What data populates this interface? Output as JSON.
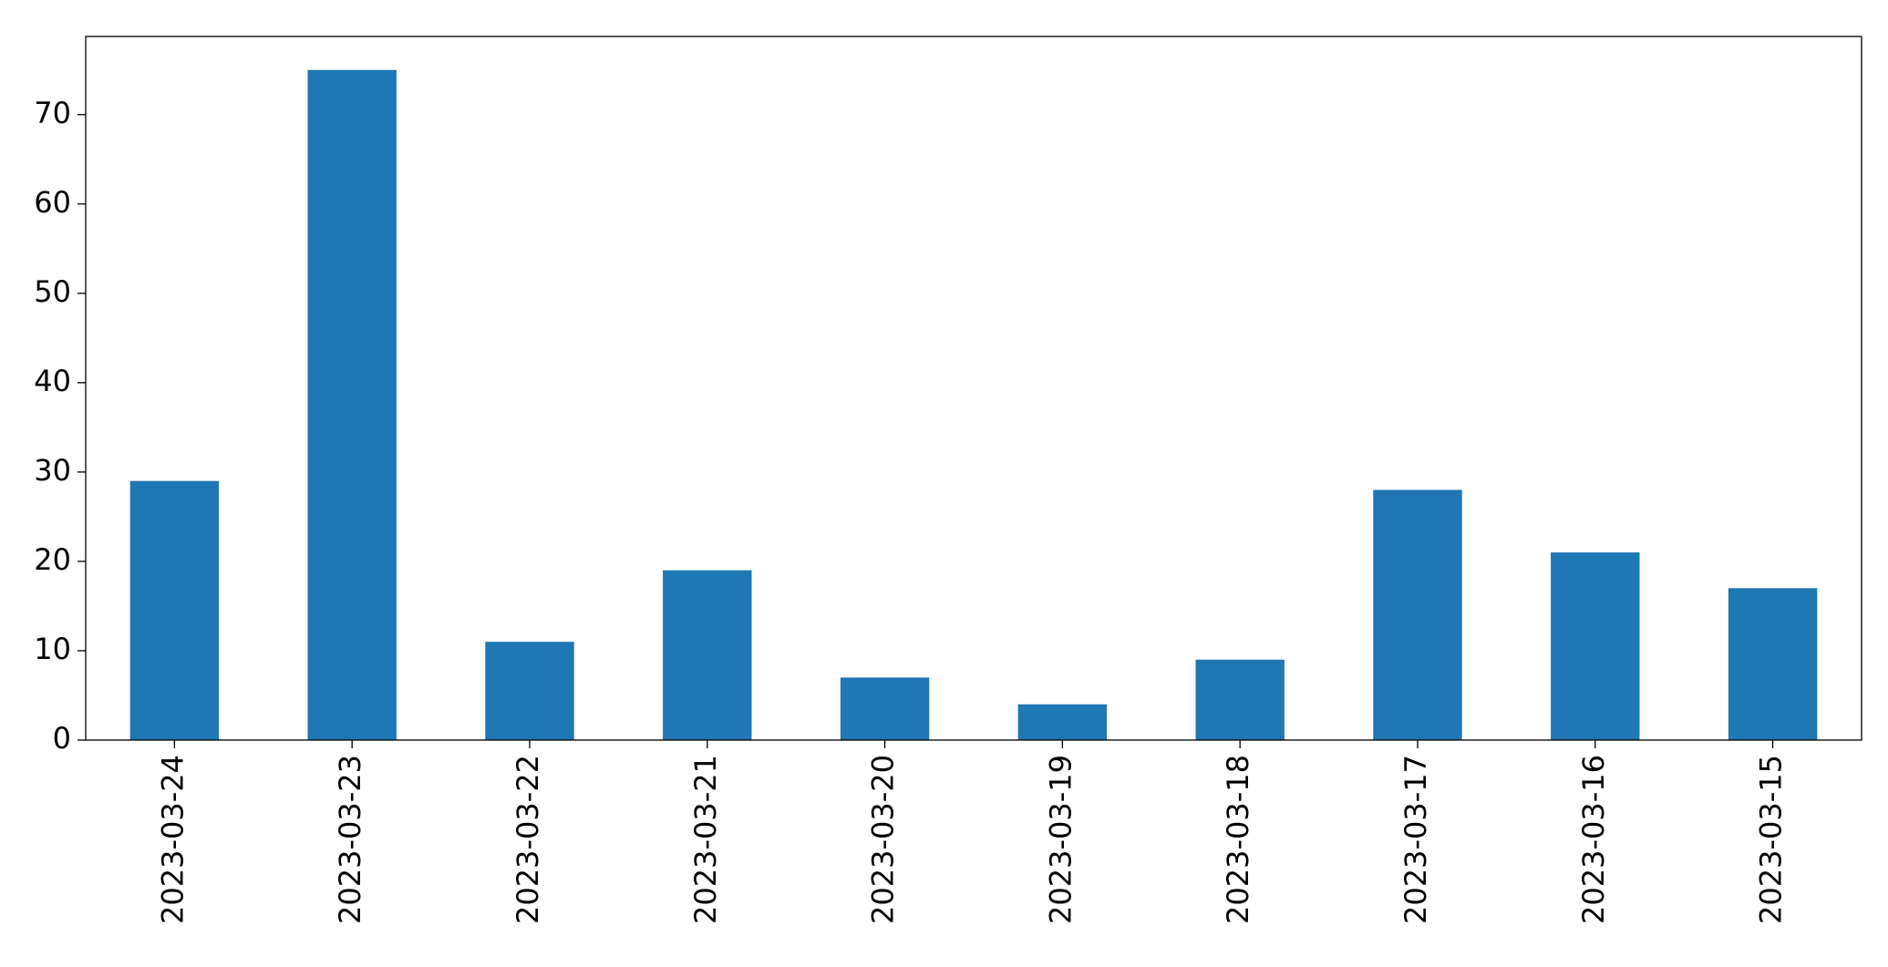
{
  "chart_data": {
    "type": "bar",
    "categories": [
      "2023-03-24",
      "2023-03-23",
      "2023-03-22",
      "2023-03-21",
      "2023-03-20",
      "2023-03-19",
      "2023-03-18",
      "2023-03-17",
      "2023-03-16",
      "2023-03-15"
    ],
    "values": [
      29,
      75,
      11,
      19,
      7,
      4,
      9,
      28,
      21,
      17
    ],
    "color": "#1f77b4",
    "ylim": [
      0,
      78.75
    ],
    "yticks": [
      0,
      10,
      20,
      30,
      40,
      50,
      60,
      70
    ],
    "grid": false
  }
}
